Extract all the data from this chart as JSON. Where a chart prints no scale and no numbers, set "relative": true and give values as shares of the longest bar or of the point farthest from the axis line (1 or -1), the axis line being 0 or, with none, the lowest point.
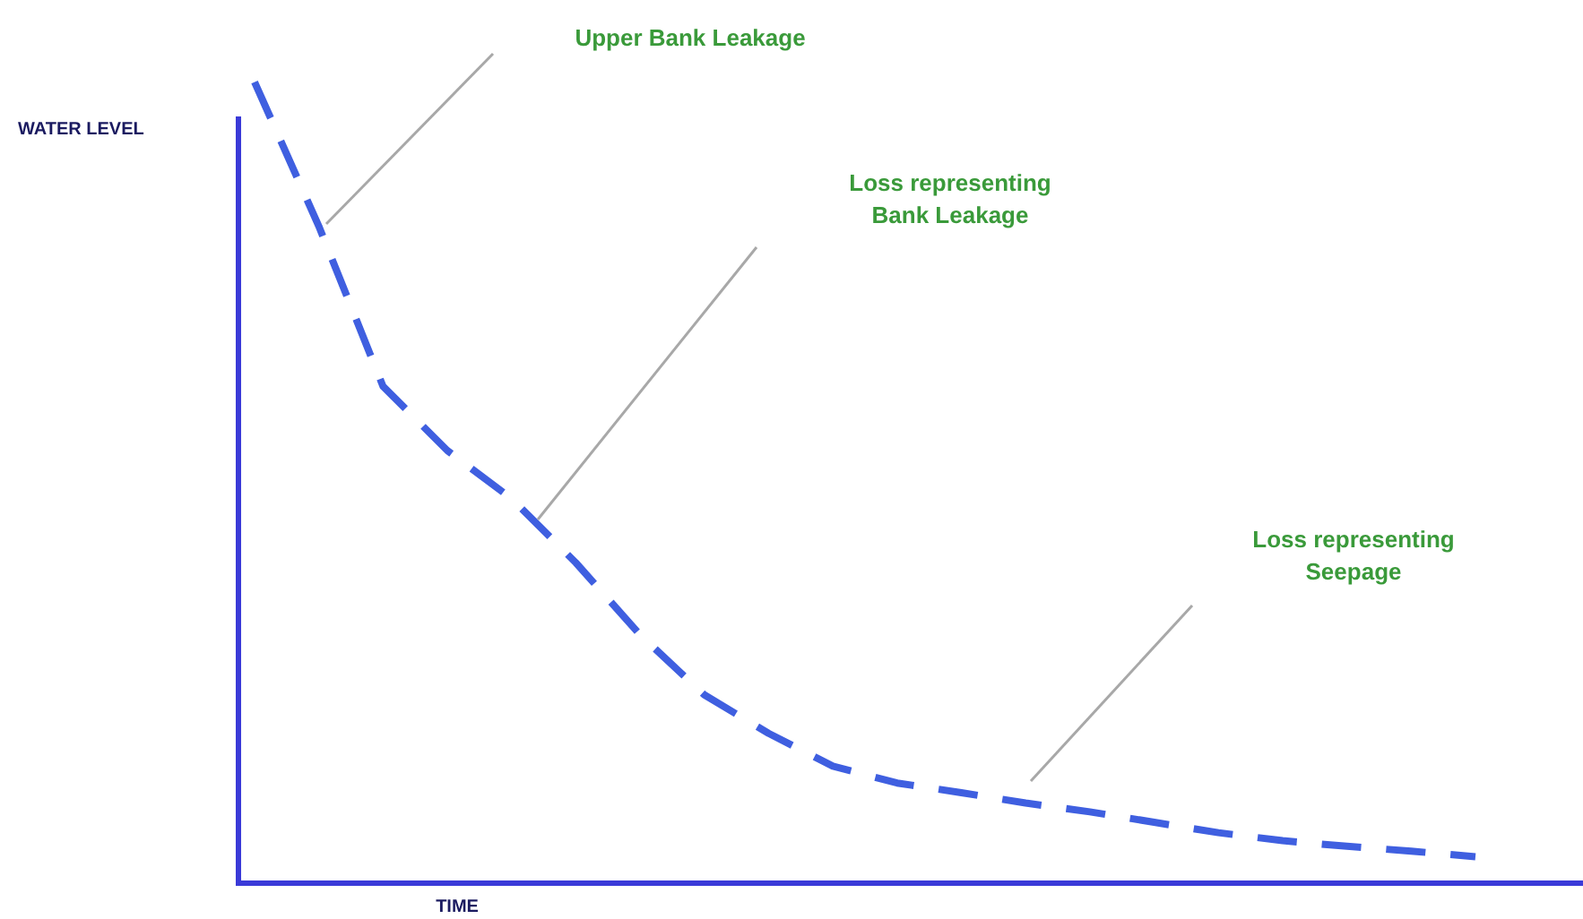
{
  "chart_data": {
    "type": "line",
    "relative": true,
    "xlabel": "TIME",
    "ylabel": "WATER LEVEL",
    "legend": false,
    "marker": "none",
    "line_style": "dashed",
    "categories": [
      null,
      null,
      null,
      null,
      null,
      null,
      null,
      null,
      null,
      null,
      null,
      null,
      null,
      null,
      null,
      null,
      null,
      null,
      null,
      null
    ],
    "series": [
      {
        "color": "#3f5fe0",
        "values": [
          1,
          0.82,
          0.62,
          0.54,
          0.48,
          0.4,
          0.31,
          0.235,
          0.187,
          0.146,
          0.125,
          0.113,
          0.1,
          0.089,
          0.076,
          0.063,
          0.053,
          0.046,
          0.04,
          0.033
        ]
      }
    ],
    "annotations": [
      "Upper Bank Leakage",
      "Loss representing\nBank Leakage",
      "Loss representing\nSeepage"
    ]
  }
}
